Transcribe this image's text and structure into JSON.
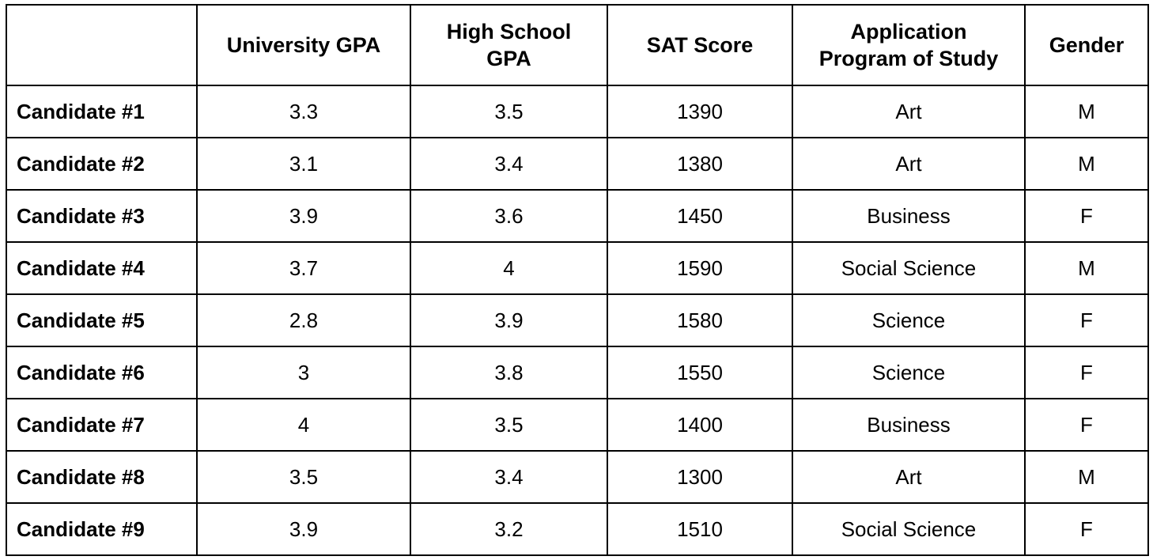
{
  "table": {
    "corner": "",
    "columns": [
      "University GPA",
      "High School\nGPA",
      "SAT Score",
      "Application\nProgram of Study",
      "Gender"
    ],
    "rows": [
      {
        "label": "Candidate #1",
        "cells": [
          "3.3",
          "3.5",
          "1390",
          "Art",
          "M"
        ]
      },
      {
        "label": "Candidate #2",
        "cells": [
          "3.1",
          "3.4",
          "1380",
          "Art",
          "M"
        ]
      },
      {
        "label": "Candidate #3",
        "cells": [
          "3.9",
          "3.6",
          "1450",
          "Business",
          "F"
        ]
      },
      {
        "label": "Candidate #4",
        "cells": [
          "3.7",
          "4",
          "1590",
          "Social Science",
          "M"
        ]
      },
      {
        "label": "Candidate #5",
        "cells": [
          "2.8",
          "3.9",
          "1580",
          "Science",
          "F"
        ]
      },
      {
        "label": "Candidate #6",
        "cells": [
          "3",
          "3.8",
          "1550",
          "Science",
          "F"
        ]
      },
      {
        "label": "Candidate #7",
        "cells": [
          "4",
          "3.5",
          "1400",
          "Business",
          "F"
        ]
      },
      {
        "label": "Candidate #8",
        "cells": [
          "3.5",
          "3.4",
          "1300",
          "Art",
          "M"
        ]
      },
      {
        "label": "Candidate #9",
        "cells": [
          "3.9",
          "3.2",
          "1510",
          "Social Science",
          "F"
        ]
      }
    ]
  }
}
